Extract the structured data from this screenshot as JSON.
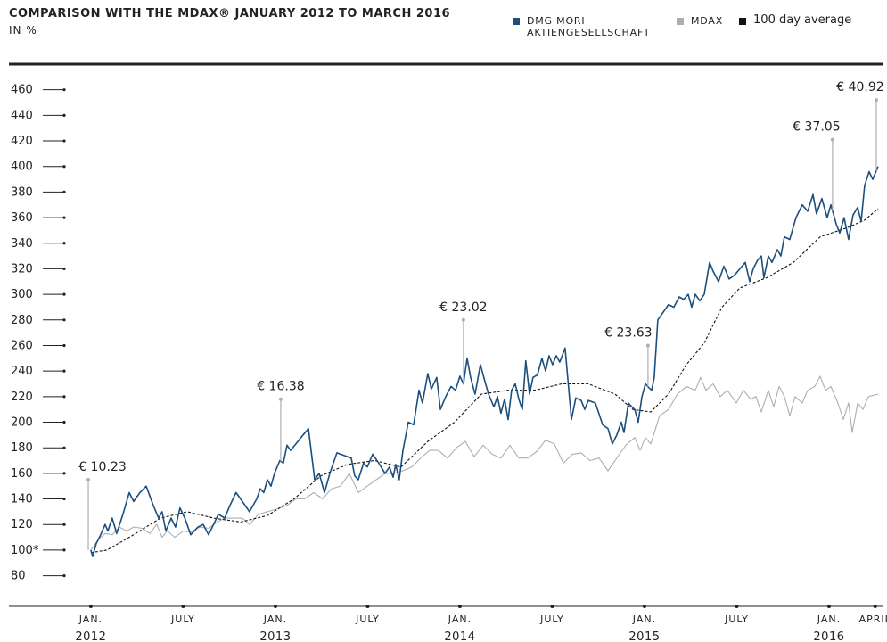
{
  "chart_data": {
    "type": "line",
    "title": "COMPARISON WITH THE MDAX® JANUARY 2012 TO MARCH 2016",
    "subtitle": "IN %",
    "xlim": [
      2011.556,
      2016.29
    ],
    "ylim": [
      56,
      480
    ],
    "yticks": [
      80,
      {
        "value": 100,
        "label": "100*"
      },
      120,
      140,
      160,
      180,
      200,
      220,
      240,
      260,
      280,
      300,
      320,
      340,
      360,
      380,
      400,
      420,
      440,
      460
    ],
    "xticks": [
      {
        "value": 2012,
        "label": "JAN."
      },
      {
        "value": 2012.5,
        "label": "JULY"
      },
      {
        "value": 2013,
        "label": "JAN."
      },
      {
        "value": 2013.5,
        "label": "JULY"
      },
      {
        "value": 2014,
        "label": "JAN."
      },
      {
        "value": 2014.5,
        "label": "JULY"
      },
      {
        "value": 2015,
        "label": "JAN."
      },
      {
        "value": 2015.5,
        "label": "JULY"
      },
      {
        "value": 2016,
        "label": "JAN."
      },
      {
        "value": 2016.25,
        "label": "APRIL"
      }
    ],
    "year_labels": [
      {
        "value": 2012,
        "label": "2012"
      },
      {
        "value": 2013,
        "label": "2013"
      },
      {
        "value": 2014,
        "label": "2014"
      },
      {
        "value": 2015,
        "label": "2015"
      },
      {
        "value": 2016,
        "label": "2016"
      }
    ],
    "grid": false,
    "series": [
      {
        "name": "DMG MORI AKTIENGESELLSCHAFT",
        "color": "#1d4f7c",
        "line_style": "solid",
        "x": [
          2012.0,
          2012.01,
          2012.029,
          2012.053,
          2012.077,
          2012.092,
          2012.116,
          2012.14,
          2012.174,
          2012.208,
          2012.232,
          2012.266,
          2012.3,
          2012.338,
          2012.367,
          2012.386,
          2012.406,
          2012.435,
          2012.459,
          2012.483,
          2012.512,
          2012.541,
          2012.58,
          2012.609,
          2012.638,
          2012.691,
          2012.725,
          2012.754,
          2012.787,
          2012.821,
          2012.86,
          2012.899,
          2012.918,
          2012.937,
          2012.957,
          2012.976,
          2012.995,
          2013.024,
          2013.043,
          2013.063,
          2013.082,
          2013.111,
          2013.15,
          2013.179,
          2013.213,
          2013.237,
          2013.266,
          2013.295,
          2013.333,
          2013.372,
          2013.411,
          2013.43,
          2013.449,
          2013.478,
          2013.498,
          2013.527,
          2013.56,
          2013.594,
          2013.618,
          2013.638,
          2013.652,
          2013.671,
          2013.691,
          2013.72,
          2013.749,
          2013.778,
          2013.797,
          2013.826,
          2013.845,
          2013.874,
          2013.894,
          2013.923,
          2013.952,
          2013.976,
          2014.0,
          2014.019,
          2014.039,
          2014.058,
          2014.082,
          2014.111,
          2014.135,
          2014.155,
          2014.184,
          2014.203,
          2014.222,
          2014.242,
          2014.261,
          2014.28,
          2014.3,
          2014.319,
          2014.338,
          2014.357,
          2014.377,
          2014.396,
          2014.42,
          2014.444,
          2014.464,
          2014.483,
          2014.502,
          2014.522,
          2014.541,
          2014.57,
          2014.604,
          2014.628,
          2014.657,
          2014.676,
          2014.696,
          2014.734,
          2014.773,
          2014.802,
          2014.826,
          2014.85,
          2014.874,
          2014.889,
          2014.913,
          2014.932,
          2014.947,
          2014.966,
          2014.986,
          2015.005,
          2015.024,
          2015.039,
          2015.053,
          2015.072,
          2015.097,
          2015.13,
          2015.159,
          2015.188,
          2015.213,
          2015.237,
          2015.256,
          2015.275,
          2015.3,
          2015.324,
          2015.353,
          2015.372,
          2015.401,
          2015.43,
          2015.459,
          2015.488,
          2015.517,
          2015.546,
          2015.57,
          2015.589,
          2015.614,
          2015.633,
          2015.647,
          2015.671,
          2015.691,
          2015.72,
          2015.739,
          2015.758,
          2015.787,
          2015.821,
          2015.855,
          2015.884,
          2015.913,
          2015.932,
          2015.961,
          2015.99,
          2016.01,
          2016.039,
          2016.058,
          2016.082,
          2016.106,
          2016.13,
          2016.155,
          2016.174,
          2016.193,
          2016.217,
          2016.237,
          2016.266
        ],
        "values": [
          100,
          95,
          105,
          112,
          120,
          115,
          125,
          113,
          128,
          145,
          138,
          145,
          150,
          135,
          125,
          130,
          115,
          125,
          118,
          133,
          124,
          112,
          118,
          120,
          112,
          128,
          125,
          135,
          145,
          138,
          130,
          140,
          148,
          145,
          155,
          150,
          160,
          170,
          168,
          182,
          178,
          183,
          190,
          195,
          155,
          160,
          145,
          160,
          176,
          174,
          172,
          158,
          155,
          168,
          165,
          175,
          168,
          160,
          165,
          157,
          167,
          155,
          178,
          200,
          198,
          225,
          215,
          238,
          226,
          235,
          210,
          220,
          228,
          225,
          236,
          230,
          250,
          235,
          222,
          245,
          232,
          222,
          212,
          220,
          207,
          218,
          202,
          225,
          230,
          218,
          210,
          248,
          222,
          235,
          237,
          250,
          240,
          252,
          245,
          252,
          247,
          258,
          202,
          219,
          217,
          210,
          217,
          215,
          198,
          195,
          183,
          190,
          200,
          192,
          215,
          212,
          210,
          200,
          220,
          230,
          227,
          225,
          235,
          280,
          285,
          292,
          290,
          298,
          296,
          300,
          290,
          300,
          295,
          300,
          325,
          318,
          310,
          322,
          312,
          315,
          320,
          325,
          310,
          320,
          327,
          330,
          313,
          330,
          325,
          335,
          330,
          345,
          343,
          360,
          370,
          365,
          378,
          363,
          375,
          360,
          370,
          355,
          348,
          360,
          343,
          362,
          368,
          357,
          385,
          396,
          390,
          400
        ]
      },
      {
        "name": "MDAX",
        "color": "#a9b0b5",
        "line_style": "solid",
        "x": [
          2012.0,
          2012.039,
          2012.077,
          2012.116,
          2012.155,
          2012.193,
          2012.232,
          2012.28,
          2012.319,
          2012.357,
          2012.386,
          2012.415,
          2012.454,
          2012.502,
          2012.541,
          2012.589,
          2012.638,
          2012.686,
          2012.725,
          2012.773,
          2012.821,
          2012.86,
          2012.908,
          2012.957,
          2013.005,
          2013.063,
          2013.111,
          2013.159,
          2013.208,
          2013.256,
          2013.304,
          2013.353,
          2013.401,
          2013.449,
          2013.498,
          2013.546,
          2013.594,
          2013.643,
          2013.691,
          2013.739,
          2013.787,
          2013.836,
          2013.884,
          2013.932,
          2013.981,
          2014.029,
          2014.077,
          2014.126,
          2014.174,
          2014.222,
          2014.271,
          2014.319,
          2014.367,
          2014.415,
          2014.464,
          2014.512,
          2014.56,
          2014.609,
          2014.657,
          2014.705,
          2014.754,
          2014.802,
          2014.85,
          2014.899,
          2014.947,
          2014.976,
          2015.005,
          2015.034,
          2015.082,
          2015.13,
          2015.179,
          2015.227,
          2015.275,
          2015.304,
          2015.333,
          2015.372,
          2015.411,
          2015.449,
          2015.498,
          2015.536,
          2015.575,
          2015.604,
          2015.633,
          2015.671,
          2015.7,
          2015.729,
          2015.758,
          2015.787,
          2015.816,
          2015.855,
          2015.884,
          2015.923,
          2015.952,
          2015.981,
          2016.01,
          2016.048,
          2016.077,
          2016.106,
          2016.126,
          2016.155,
          2016.184,
          2016.213,
          2016.266
        ],
        "values": [
          100,
          108,
          113,
          112,
          118,
          115,
          118,
          117,
          113,
          120,
          110,
          115,
          110,
          115,
          114,
          118,
          117,
          122,
          125,
          125,
          125,
          120,
          128,
          130,
          132,
          135,
          140,
          140,
          145,
          140,
          148,
          150,
          160,
          145,
          150,
          155,
          160,
          160,
          162,
          165,
          172,
          178,
          178,
          172,
          180,
          185,
          173,
          182,
          175,
          172,
          182,
          172,
          172,
          177,
          186,
          183,
          168,
          175,
          176,
          170,
          172,
          162,
          172,
          182,
          188,
          178,
          188,
          183,
          205,
          210,
          222,
          228,
          225,
          235,
          225,
          230,
          220,
          225,
          215,
          225,
          218,
          220,
          208,
          225,
          212,
          228,
          220,
          205,
          220,
          215,
          225,
          228,
          236,
          225,
          228,
          215,
          202,
          215,
          192,
          215,
          210,
          220,
          222
        ]
      },
      {
        "name": "100 day average",
        "color": "#111111",
        "line_style": "dashed",
        "x": [
          2012.0,
          2012.087,
          2012.232,
          2012.377,
          2012.522,
          2012.667,
          2012.812,
          2012.957,
          2013.101,
          2013.246,
          2013.391,
          2013.536,
          2013.681,
          2013.826,
          2013.971,
          2014.116,
          2014.261,
          2014.406,
          2014.551,
          2014.696,
          2014.841,
          2014.937,
          2015.034,
          2015.13,
          2015.227,
          2015.324,
          2015.42,
          2015.517,
          2015.662,
          2015.807,
          2015.952,
          2016.097,
          2016.193,
          2016.266
        ],
        "values": [
          98,
          100,
          112,
          125,
          130,
          125,
          122,
          127,
          140,
          158,
          167,
          170,
          165,
          185,
          200,
          222,
          225,
          225,
          230,
          230,
          222,
          210,
          208,
          222,
          245,
          262,
          290,
          305,
          313,
          325,
          345,
          352,
          358,
          367
        ]
      }
    ],
    "annotations": [
      {
        "text": "€ 10.23",
        "x": 2011.986,
        "y": 155
      },
      {
        "text": "€ 16.38",
        "x": 2013.029,
        "y": 218
      },
      {
        "text": "€ 23.02",
        "x": 2014.019,
        "y": 280
      },
      {
        "text": "€ 23.63",
        "x": 2015.019,
        "y": 260
      },
      {
        "text": "€ 37.05",
        "x": 2016.019,
        "y": 421
      },
      {
        "text": "€ 40.92",
        "x": 2016.256,
        "y": 452
      }
    ]
  }
}
